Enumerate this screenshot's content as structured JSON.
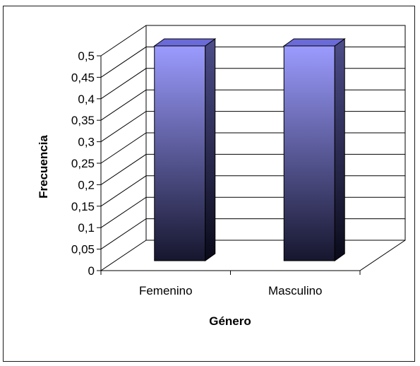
{
  "chart_data": {
    "type": "bar",
    "style": "3d-column",
    "categories": [
      "Femenino",
      "Masculino"
    ],
    "values": [
      0.5,
      0.5
    ],
    "xlabel": "Género",
    "ylabel": "Frecuencia",
    "ylim": [
      0,
      0.5
    ],
    "yticks": [
      "0",
      "0,05",
      "0,1",
      "0,15",
      "0,2",
      "0,25",
      "0,3",
      "0,35",
      "0,4",
      "0,45",
      "0,5"
    ],
    "tick_step": 0.05,
    "grid": true,
    "colors": {
      "bar_top": "#9b9bff",
      "bar_bottom": "#16162e",
      "bar_side_top": "#4d4d8a",
      "bar_side_bottom": "#0a0a1a",
      "bar_cap": "#6a6ad8",
      "gridline": "#000000"
    }
  }
}
